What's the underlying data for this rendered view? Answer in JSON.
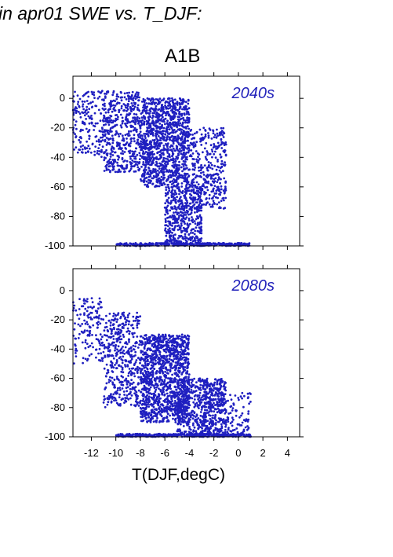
{
  "figure": {
    "title": "in apr01 SWE vs. T_DJF:",
    "scenario": "A1B",
    "xlabel": "T(DJF,degC)"
  },
  "chart_data": [
    {
      "type": "scatter",
      "panel": "2040s",
      "annotation": "2040s",
      "xlim": [
        -13.5,
        5
      ],
      "ylim": [
        -100,
        15
      ],
      "x_ticks": [
        -12,
        -10,
        -8,
        -6,
        -4,
        -2,
        0,
        2,
        4
      ],
      "y_ticks": [
        0,
        -20,
        -40,
        -60,
        -80,
        -100
      ],
      "y_tick_labels": [
        "0",
        "-20",
        "-40",
        "-60",
        "-80",
        "-100"
      ],
      "point_color": "#1f1fc0",
      "grid": false,
      "approx_points": 3000,
      "density_summary": [
        {
          "x_range": [
            -13.5,
            -11
          ],
          "y_range": [
            -40,
            5
          ],
          "share": 0.06
        },
        {
          "x_range": [
            -11,
            -8
          ],
          "y_range": [
            -50,
            5
          ],
          "share": 0.16
        },
        {
          "x_range": [
            -8,
            -4
          ],
          "y_range": [
            -60,
            0
          ],
          "share": 0.38
        },
        {
          "x_range": [
            -6,
            -3
          ],
          "y_range": [
            -100,
            -60
          ],
          "share": 0.16
        },
        {
          "x_range": [
            -4,
            -1
          ],
          "y_range": [
            -75,
            -20
          ],
          "share": 0.12
        },
        {
          "x_range": [
            -10,
            1
          ],
          "y_range": [
            -100,
            -98
          ],
          "share": 0.12
        }
      ]
    },
    {
      "type": "scatter",
      "panel": "2080s",
      "annotation": "2080s",
      "xlim": [
        -13.5,
        5
      ],
      "ylim": [
        -100,
        15
      ],
      "x_ticks": [
        -12,
        -10,
        -8,
        -6,
        -4,
        -2,
        0,
        2,
        4
      ],
      "x_tick_labels": [
        "-12",
        "-10",
        "-8",
        "-6",
        "-4",
        "-2",
        "0",
        "2",
        "4"
      ],
      "y_ticks": [
        0,
        -20,
        -40,
        -60,
        -80,
        -100
      ],
      "y_tick_labels": [
        "0",
        "-20",
        "-40",
        "-60",
        "-80",
        "-100"
      ],
      "point_color": "#1f1fc0",
      "grid": false,
      "approx_points": 3000,
      "density_summary": [
        {
          "x_range": [
            -13.5,
            -11
          ],
          "y_range": [
            -50,
            -5
          ],
          "share": 0.05
        },
        {
          "x_range": [
            -11,
            -8
          ],
          "y_range": [
            -80,
            -15
          ],
          "share": 0.15
        },
        {
          "x_range": [
            -8,
            -4
          ],
          "y_range": [
            -90,
            -30
          ],
          "share": 0.42
        },
        {
          "x_range": [
            -5,
            -1
          ],
          "y_range": [
            -100,
            -60
          ],
          "share": 0.2
        },
        {
          "x_range": [
            -3,
            1
          ],
          "y_range": [
            -100,
            -70
          ],
          "share": 0.06
        },
        {
          "x_range": [
            -10,
            1
          ],
          "y_range": [
            -100,
            -98
          ],
          "share": 0.12
        }
      ]
    }
  ]
}
